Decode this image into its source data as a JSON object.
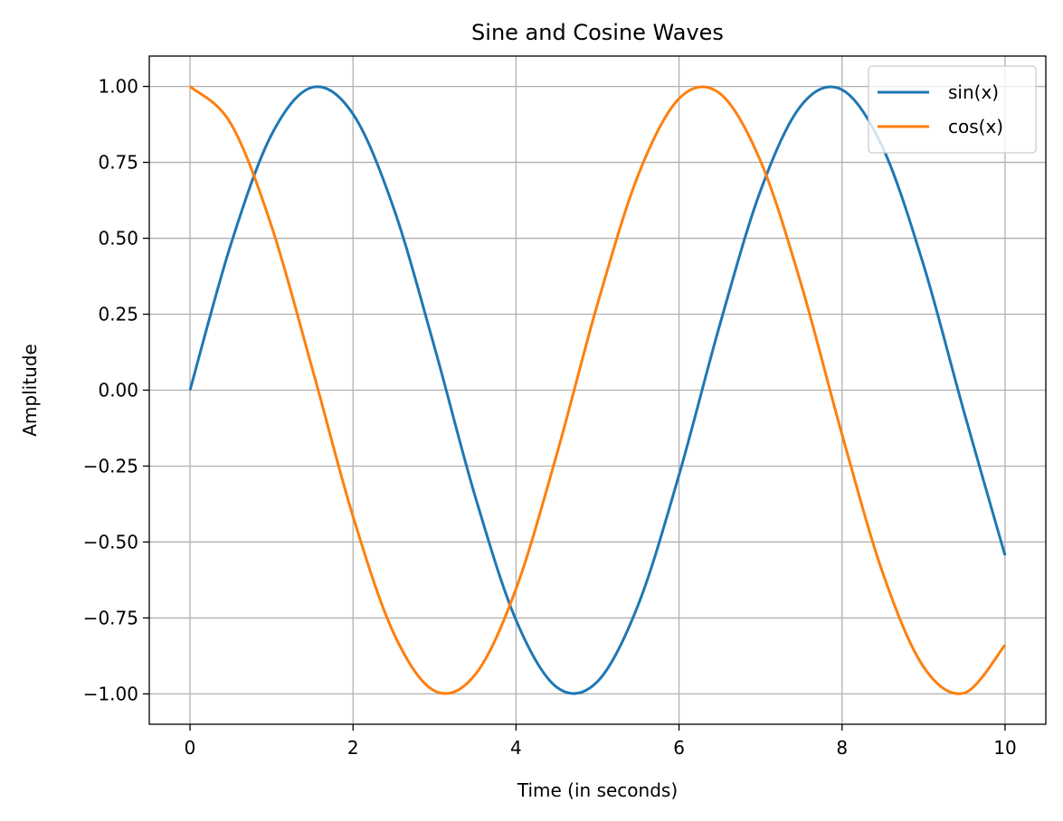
{
  "chart_data": {
    "type": "line",
    "title": "Sine and Cosine Waves",
    "xlabel": "Time (in seconds)",
    "ylabel": "Amplitude",
    "xlim": [
      -0.5,
      10.5
    ],
    "ylim": [
      -1.1,
      1.1
    ],
    "x_ticks": [
      0,
      2,
      4,
      6,
      8,
      10
    ],
    "x_tick_labels": [
      "0",
      "2",
      "4",
      "6",
      "8",
      "10"
    ],
    "y_ticks": [
      -1.0,
      -0.75,
      -0.5,
      -0.25,
      0.0,
      0.25,
      0.5,
      0.75,
      1.0
    ],
    "y_tick_labels": [
      "−1.00",
      "−0.75",
      "−0.50",
      "−0.25",
      "0.00",
      "0.25",
      "0.50",
      "0.75",
      "1.00"
    ],
    "grid": true,
    "legend_position": "upper right",
    "series": [
      {
        "name": "sin(x)",
        "color": "#1f77b4",
        "x": [
          0,
          0.5,
          1,
          1.5,
          2,
          2.5,
          3,
          3.5,
          4,
          4.5,
          5,
          5.5,
          6,
          6.5,
          7,
          7.5,
          8,
          8.5,
          9,
          9.5,
          10
        ],
        "y": [
          0.0,
          0.479,
          0.841,
          0.997,
          0.909,
          0.598,
          0.141,
          -0.351,
          -0.757,
          -0.978,
          -0.959,
          -0.706,
          -0.279,
          0.215,
          0.657,
          0.938,
          0.989,
          0.798,
          0.412,
          -0.075,
          -0.544
        ]
      },
      {
        "name": "cos(x)",
        "color": "#ff7f0e",
        "x": [
          0,
          0.5,
          1,
          1.5,
          2,
          2.5,
          3,
          3.5,
          4,
          4.5,
          5,
          5.5,
          6,
          6.5,
          7,
          7.5,
          8,
          8.5,
          9,
          9.5,
          10
        ],
        "y": [
          1.0,
          0.878,
          0.54,
          0.071,
          -0.416,
          -0.801,
          -0.99,
          -0.936,
          -0.654,
          -0.211,
          0.284,
          0.709,
          0.96,
          0.977,
          0.754,
          0.347,
          -0.146,
          -0.602,
          -0.911,
          -0.997,
          -0.839
        ]
      }
    ]
  }
}
